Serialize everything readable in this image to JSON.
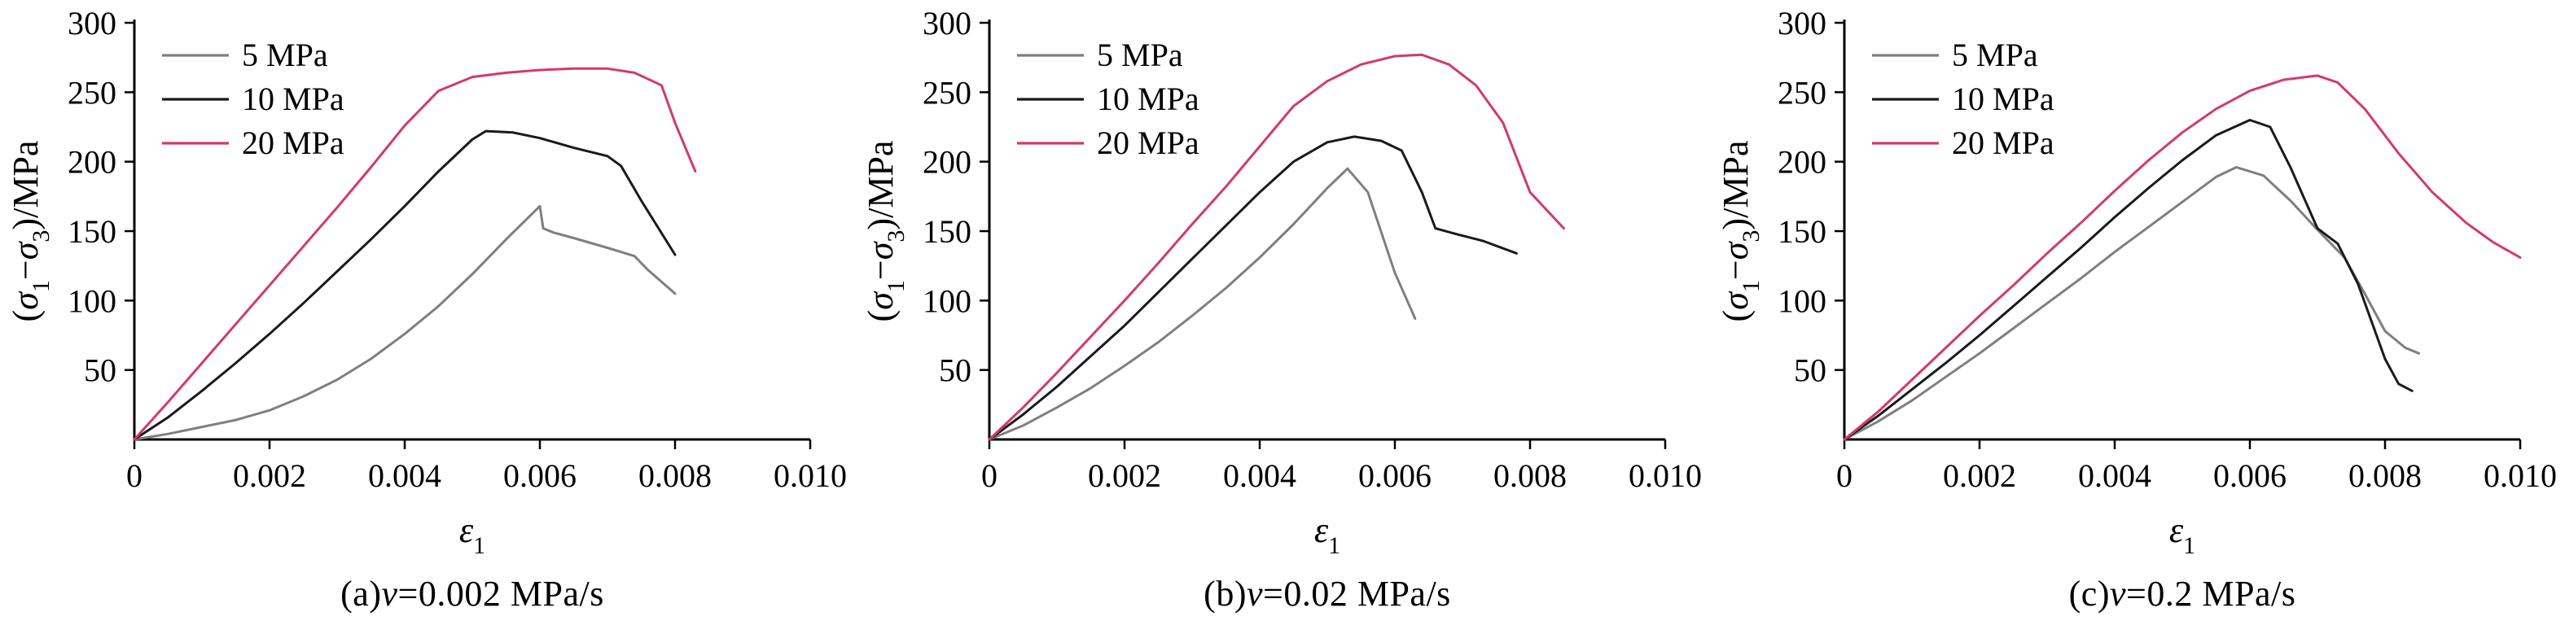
{
  "figure": {
    "background": "#ffffff",
    "axis_color": "#000000"
  },
  "colors": {
    "series_5mpa": "#7f7f7f",
    "series_10mpa": "#1a1a1a",
    "series_20mpa": "#d23a6c"
  },
  "chart_data": [
    {
      "type": "line",
      "caption": {
        "index": "(a) ",
        "var": "v",
        "rest": "=0.002 MPa/s"
      },
      "xlabel_parts": [
        {
          "t": "ε",
          "italic": true
        },
        {
          "t": "1",
          "sub": true
        }
      ],
      "ylabel_parts": [
        {
          "t": "("
        },
        {
          "t": "σ",
          "italic": true
        },
        {
          "t": "1",
          "sub": true
        },
        {
          "t": "−"
        },
        {
          "t": "σ",
          "italic": true
        },
        {
          "t": "3",
          "sub": true
        },
        {
          "t": ")/MPa"
        }
      ],
      "xlim": [
        0,
        0.01
      ],
      "ylim": [
        0,
        300
      ],
      "xticks": [
        0,
        0.002,
        0.004,
        0.006,
        0.008,
        0.01
      ],
      "xtick_labels": [
        "0",
        "0.002",
        "0.004",
        "0.006",
        "0.008",
        "0.010"
      ],
      "yticks": [
        50,
        100,
        150,
        200,
        250,
        300
      ],
      "ytick_labels": [
        "50",
        "100",
        "150",
        "200",
        "250",
        "300"
      ],
      "grid": false,
      "legend_position": "top-left",
      "series": [
        {
          "name": "5 MPa",
          "color": "#7f7f7f",
          "x": [
            0,
            0.0005,
            0.001,
            0.0015,
            0.002,
            0.0025,
            0.003,
            0.0035,
            0.004,
            0.0045,
            0.005,
            0.0055,
            0.006,
            0.00605,
            0.0062,
            0.0065,
            0.007,
            0.0074,
            0.0076,
            0.008
          ],
          "y": [
            0,
            4,
            9,
            14,
            21,
            31,
            43,
            58,
            76,
            96,
            119,
            144,
            168,
            152,
            149,
            145,
            138,
            132,
            122,
            105
          ]
        },
        {
          "name": "10 MPa",
          "color": "#1a1a1a",
          "x": [
            0,
            0.0005,
            0.001,
            0.0015,
            0.002,
            0.0025,
            0.003,
            0.0035,
            0.004,
            0.0045,
            0.005,
            0.0052,
            0.0056,
            0.006,
            0.0065,
            0.007,
            0.0072,
            0.0075,
            0.008
          ],
          "y": [
            0,
            16,
            35,
            55,
            76,
            98,
            121,
            144,
            168,
            193,
            216,
            222,
            221,
            217,
            210,
            204,
            197,
            172,
            133
          ]
        },
        {
          "name": "20 MPa",
          "color": "#d23a6c",
          "x": [
            0,
            0.0005,
            0.001,
            0.0015,
            0.002,
            0.0025,
            0.003,
            0.0035,
            0.004,
            0.0045,
            0.005,
            0.0055,
            0.006,
            0.0065,
            0.007,
            0.0074,
            0.0078,
            0.008,
            0.0083
          ],
          "y": [
            0,
            27,
            55,
            83,
            111,
            139,
            167,
            196,
            226,
            251,
            261,
            264,
            266,
            267,
            267,
            264,
            255,
            228,
            193
          ]
        }
      ]
    },
    {
      "type": "line",
      "caption": {
        "index": "(b) ",
        "var": "v",
        "rest": "=0.02 MPa/s"
      },
      "xlabel_parts": [
        {
          "t": "ε",
          "italic": true
        },
        {
          "t": "1",
          "sub": true
        }
      ],
      "ylabel_parts": [
        {
          "t": "("
        },
        {
          "t": "σ",
          "italic": true
        },
        {
          "t": "1",
          "sub": true
        },
        {
          "t": "−"
        },
        {
          "t": "σ",
          "italic": true
        },
        {
          "t": "3",
          "sub": true
        },
        {
          "t": ")/MPa"
        }
      ],
      "xlim": [
        0,
        0.01
      ],
      "ylim": [
        0,
        300
      ],
      "xticks": [
        0,
        0.002,
        0.004,
        0.006,
        0.008,
        0.01
      ],
      "xtick_labels": [
        "0",
        "0.002",
        "0.004",
        "0.006",
        "0.008",
        "0.010"
      ],
      "yticks": [
        50,
        100,
        150,
        200,
        250,
        300
      ],
      "ytick_labels": [
        "50",
        "100",
        "150",
        "200",
        "250",
        "300"
      ],
      "grid": false,
      "legend_position": "top-left",
      "series": [
        {
          "name": "5 MPa",
          "color": "#7f7f7f",
          "x": [
            0,
            0.0005,
            0.001,
            0.0015,
            0.002,
            0.0025,
            0.003,
            0.0035,
            0.004,
            0.0045,
            0.005,
            0.0053,
            0.0056,
            0.006,
            0.0063
          ],
          "y": [
            0,
            10,
            23,
            37,
            53,
            70,
            89,
            109,
            131,
            155,
            181,
            195,
            178,
            120,
            87
          ]
        },
        {
          "name": "10 MPa",
          "color": "#1a1a1a",
          "x": [
            0,
            0.0005,
            0.001,
            0.0015,
            0.002,
            0.0025,
            0.003,
            0.0035,
            0.004,
            0.0045,
            0.005,
            0.0054,
            0.0058,
            0.0061,
            0.0064,
            0.0066,
            0.0069,
            0.0073,
            0.0078
          ],
          "y": [
            0,
            18,
            38,
            60,
            82,
            106,
            130,
            154,
            178,
            200,
            214,
            218,
            215,
            208,
            178,
            152,
            148,
            143,
            134
          ]
        },
        {
          "name": "20 MPa",
          "color": "#d23a6c",
          "x": [
            0,
            0.0005,
            0.001,
            0.0015,
            0.002,
            0.0025,
            0.003,
            0.0035,
            0.004,
            0.0045,
            0.005,
            0.0055,
            0.006,
            0.0064,
            0.0068,
            0.0072,
            0.0076,
            0.008,
            0.0085
          ],
          "y": [
            0,
            23,
            48,
            74,
            100,
            127,
            155,
            182,
            211,
            240,
            258,
            270,
            276,
            277,
            270,
            255,
            228,
            178,
            152
          ]
        }
      ]
    },
    {
      "type": "line",
      "caption": {
        "index": "(c) ",
        "var": "v",
        "rest": "=0.2 MPa/s"
      },
      "xlabel_parts": [
        {
          "t": "ε",
          "italic": true
        },
        {
          "t": "1",
          "sub": true
        }
      ],
      "ylabel_parts": [
        {
          "t": "("
        },
        {
          "t": "σ",
          "italic": true
        },
        {
          "t": "1",
          "sub": true
        },
        {
          "t": "−"
        },
        {
          "t": "σ",
          "italic": true
        },
        {
          "t": "3",
          "sub": true
        },
        {
          "t": ")/MPa"
        }
      ],
      "xlim": [
        0,
        0.01
      ],
      "ylim": [
        0,
        300
      ],
      "xticks": [
        0,
        0.002,
        0.004,
        0.006,
        0.008,
        0.01
      ],
      "xtick_labels": [
        "0",
        "0.002",
        "0.004",
        "0.006",
        "0.008",
        "0.010"
      ],
      "yticks": [
        50,
        100,
        150,
        200,
        250,
        300
      ],
      "ytick_labels": [
        "50",
        "100",
        "150",
        "200",
        "250",
        "300"
      ],
      "grid": false,
      "legend_position": "top-left",
      "series": [
        {
          "name": "5 MPa",
          "color": "#7f7f7f",
          "x": [
            0,
            0.0005,
            0.001,
            0.0015,
            0.002,
            0.0025,
            0.003,
            0.0035,
            0.004,
            0.0045,
            0.005,
            0.0055,
            0.0058,
            0.0062,
            0.0066,
            0.007,
            0.0074,
            0.0077,
            0.008,
            0.0083,
            0.0085
          ],
          "y": [
            0,
            13,
            28,
            45,
            62,
            80,
            98,
            116,
            135,
            153,
            171,
            189,
            196,
            190,
            172,
            151,
            131,
            105,
            78,
            66,
            62
          ]
        },
        {
          "name": "10 MPa",
          "color": "#1a1a1a",
          "x": [
            0,
            0.0005,
            0.001,
            0.0015,
            0.002,
            0.0025,
            0.003,
            0.0035,
            0.004,
            0.0045,
            0.005,
            0.0055,
            0.006,
            0.0063,
            0.0066,
            0.007,
            0.0073,
            0.0076,
            0.008,
            0.0082,
            0.0084
          ],
          "y": [
            0,
            17,
            36,
            55,
            75,
            96,
            117,
            138,
            160,
            181,
            201,
            219,
            230,
            225,
            196,
            152,
            141,
            112,
            58,
            40,
            35
          ]
        },
        {
          "name": "20 MPa",
          "color": "#d23a6c",
          "x": [
            0,
            0.0005,
            0.001,
            0.0015,
            0.002,
            0.0025,
            0.003,
            0.0035,
            0.004,
            0.0045,
            0.005,
            0.0055,
            0.006,
            0.0065,
            0.007,
            0.0073,
            0.0077,
            0.0082,
            0.0087,
            0.0092,
            0.0096,
            0.01
          ],
          "y": [
            0,
            20,
            43,
            66,
            89,
            111,
            134,
            156,
            179,
            201,
            221,
            238,
            251,
            259,
            262,
            257,
            238,
            206,
            178,
            156,
            142,
            131
          ]
        }
      ]
    }
  ]
}
